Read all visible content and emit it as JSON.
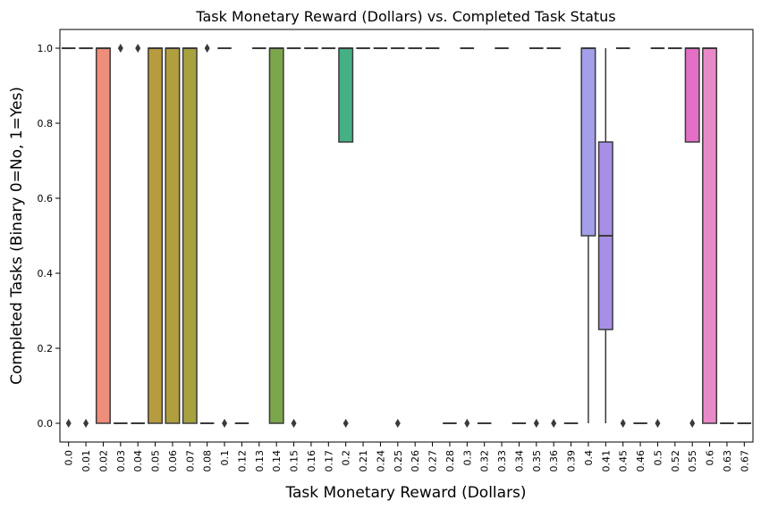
{
  "chart_data": {
    "type": "box",
    "title": "Task Monetary Reward (Dollars) vs. Completed Task Status",
    "xlabel": "Task Monetary Reward (Dollars)",
    "ylabel": "Completed Tasks (Binary 0=No, 1=Yes)",
    "ylim": [
      -0.05,
      1.05
    ],
    "yticks": [
      "0.0",
      "0.2",
      "0.4",
      "0.6",
      "0.8",
      "1.0"
    ],
    "grid": false,
    "categories": [
      "0.0",
      "0.01",
      "0.02",
      "0.03",
      "0.04",
      "0.05",
      "0.06",
      "0.07",
      "0.08",
      "0.1",
      "0.12",
      "0.13",
      "0.14",
      "0.15",
      "0.16",
      "0.17",
      "0.2",
      "0.21",
      "0.24",
      "0.25",
      "0.26",
      "0.27",
      "0.28",
      "0.3",
      "0.32",
      "0.33",
      "0.34",
      "0.35",
      "0.36",
      "0.39",
      "0.4",
      "0.41",
      "0.45",
      "0.46",
      "0.5",
      "0.52",
      "0.55",
      "0.6",
      "0.63",
      "0.67"
    ],
    "boxes": [
      {
        "q1": 1,
        "median": 1,
        "q3": 1,
        "whislo": 1,
        "whishi": 1,
        "fliers": [
          0
        ]
      },
      {
        "q1": 1,
        "median": 1,
        "q3": 1,
        "whislo": 1,
        "whishi": 1,
        "fliers": [
          0
        ]
      },
      {
        "q1": 0,
        "median": 1,
        "q3": 1,
        "whislo": 0,
        "whishi": 1,
        "fliers": []
      },
      {
        "q1": 0,
        "median": 0,
        "q3": 0,
        "whislo": 0,
        "whishi": 0,
        "fliers": [
          1
        ]
      },
      {
        "q1": 0,
        "median": 0,
        "q3": 0,
        "whislo": 0,
        "whishi": 0,
        "fliers": [
          1
        ]
      },
      {
        "q1": 0,
        "median": 1,
        "q3": 1,
        "whislo": 0,
        "whishi": 1,
        "fliers": []
      },
      {
        "q1": 0,
        "median": 1,
        "q3": 1,
        "whislo": 0,
        "whishi": 1,
        "fliers": []
      },
      {
        "q1": 0,
        "median": 1,
        "q3": 1,
        "whislo": 0,
        "whishi": 1,
        "fliers": []
      },
      {
        "q1": 0,
        "median": 0,
        "q3": 0,
        "whislo": 0,
        "whishi": 0,
        "fliers": [
          1
        ]
      },
      {
        "q1": 1,
        "median": 1,
        "q3": 1,
        "whislo": 1,
        "whishi": 1,
        "fliers": [
          0
        ]
      },
      {
        "q1": 0,
        "median": 0,
        "q3": 0,
        "whislo": 0,
        "whishi": 0,
        "fliers": []
      },
      {
        "q1": 1,
        "median": 1,
        "q3": 1,
        "whislo": 1,
        "whishi": 1,
        "fliers": []
      },
      {
        "q1": 0,
        "median": 1,
        "q3": 1,
        "whislo": 0,
        "whishi": 1,
        "fliers": []
      },
      {
        "q1": 1,
        "median": 1,
        "q3": 1,
        "whislo": 1,
        "whishi": 1,
        "fliers": [
          0
        ]
      },
      {
        "q1": 1,
        "median": 1,
        "q3": 1,
        "whislo": 1,
        "whishi": 1,
        "fliers": []
      },
      {
        "q1": 1,
        "median": 1,
        "q3": 1,
        "whislo": 1,
        "whishi": 1,
        "fliers": []
      },
      {
        "q1": 0.75,
        "median": 1,
        "q3": 1,
        "whislo": 0.75,
        "whishi": 1,
        "fliers": [
          0
        ]
      },
      {
        "q1": 1,
        "median": 1,
        "q3": 1,
        "whislo": 1,
        "whishi": 1,
        "fliers": []
      },
      {
        "q1": 1,
        "median": 1,
        "q3": 1,
        "whislo": 1,
        "whishi": 1,
        "fliers": []
      },
      {
        "q1": 1,
        "median": 1,
        "q3": 1,
        "whislo": 1,
        "whishi": 1,
        "fliers": [
          0
        ]
      },
      {
        "q1": 1,
        "median": 1,
        "q3": 1,
        "whislo": 1,
        "whishi": 1,
        "fliers": []
      },
      {
        "q1": 1,
        "median": 1,
        "q3": 1,
        "whislo": 1,
        "whishi": 1,
        "fliers": []
      },
      {
        "q1": 0,
        "median": 0,
        "q3": 0,
        "whislo": 0,
        "whishi": 0,
        "fliers": []
      },
      {
        "q1": 1,
        "median": 1,
        "q3": 1,
        "whislo": 1,
        "whishi": 1,
        "fliers": [
          0
        ]
      },
      {
        "q1": 0,
        "median": 0,
        "q3": 0,
        "whislo": 0,
        "whishi": 0,
        "fliers": []
      },
      {
        "q1": 1,
        "median": 1,
        "q3": 1,
        "whislo": 1,
        "whishi": 1,
        "fliers": []
      },
      {
        "q1": 0,
        "median": 0,
        "q3": 0,
        "whislo": 0,
        "whishi": 0,
        "fliers": []
      },
      {
        "q1": 1,
        "median": 1,
        "q3": 1,
        "whislo": 1,
        "whishi": 1,
        "fliers": [
          0
        ]
      },
      {
        "q1": 1,
        "median": 1,
        "q3": 1,
        "whislo": 1,
        "whishi": 1,
        "fliers": [
          0
        ]
      },
      {
        "q1": 0,
        "median": 0,
        "q3": 0,
        "whislo": 0,
        "whishi": 0,
        "fliers": []
      },
      {
        "q1": 0.5,
        "median": 1,
        "q3": 1,
        "whislo": 0,
        "whishi": 1,
        "fliers": []
      },
      {
        "q1": 0.25,
        "median": 0.5,
        "q3": 0.75,
        "whislo": 0,
        "whishi": 1,
        "fliers": []
      },
      {
        "q1": 1,
        "median": 1,
        "q3": 1,
        "whislo": 1,
        "whishi": 1,
        "fliers": [
          0
        ]
      },
      {
        "q1": 0,
        "median": 0,
        "q3": 0,
        "whislo": 0,
        "whishi": 0,
        "fliers": []
      },
      {
        "q1": 1,
        "median": 1,
        "q3": 1,
        "whislo": 1,
        "whishi": 1,
        "fliers": [
          0
        ]
      },
      {
        "q1": 1,
        "median": 1,
        "q3": 1,
        "whislo": 1,
        "whishi": 1,
        "fliers": []
      },
      {
        "q1": 0.75,
        "median": 1,
        "q3": 1,
        "whislo": 0.75,
        "whishi": 1,
        "fliers": [
          0
        ]
      },
      {
        "q1": 0,
        "median": 1,
        "q3": 1,
        "whislo": 0,
        "whishi": 1,
        "fliers": []
      },
      {
        "q1": 0,
        "median": 0,
        "q3": 0,
        "whislo": 0,
        "whishi": 0,
        "fliers": []
      },
      {
        "q1": 0,
        "median": 0,
        "q3": 0,
        "whislo": 0,
        "whishi": 0,
        "fliers": []
      }
    ],
    "colors": [
      "#ea96a3",
      "#ec9591",
      "#ee8d7a",
      "#e99a55",
      "#c39a3f",
      "#b79c3f",
      "#b19e3f",
      "#a8a23e",
      "#9aa63d",
      "#8aaa3c",
      "#78ad3c",
      "#65b03b",
      "#7ca64c",
      "#4cb247",
      "#42b45d",
      "#3fb36f",
      "#46b085",
      "#3dae93",
      "#3caf9c",
      "#3eaea5",
      "#40aeaf",
      "#3ba5b2",
      "#3aa0b6",
      "#3d9bbd",
      "#4595c7",
      "#5a90d3",
      "#7a8ce0",
      "#8d85e3",
      "#9e83e6",
      "#a998ee",
      "#a39fe9",
      "#a88fe6",
      "#b27de1",
      "#c173dc",
      "#cf6ed8",
      "#db6acf",
      "#e46fc7",
      "#e98ac8",
      "#ea87b8",
      "#ea8fb0"
    ],
    "median_color": "#3a3a3a"
  }
}
